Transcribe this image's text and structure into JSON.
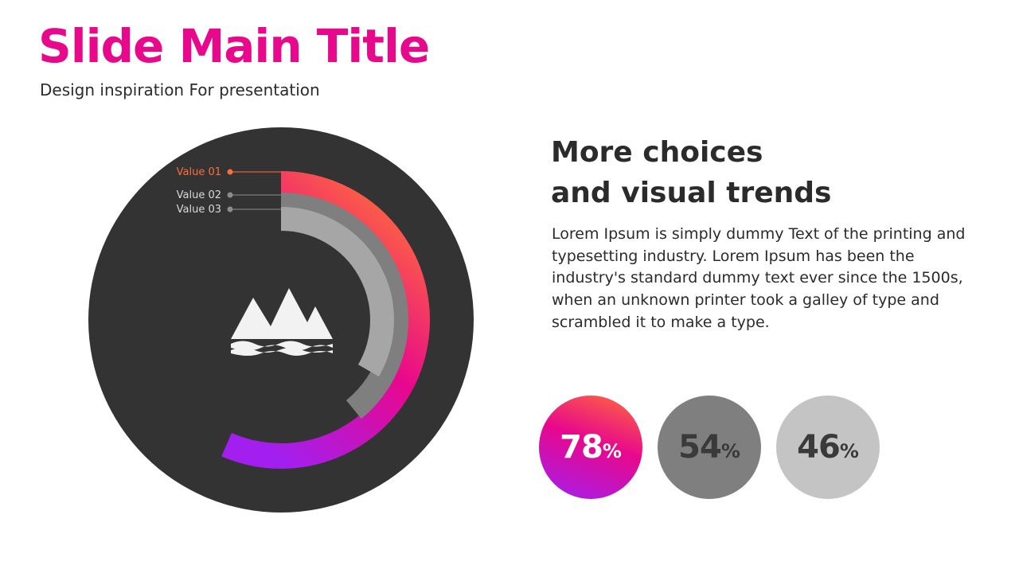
{
  "slide": {
    "title": "Slide Main Title",
    "subtitle": "Design inspiration For presentation"
  },
  "text_block": {
    "heading_line1": "More choices",
    "heading_line2": "and visual trends",
    "body": "Lorem Ipsum is simply dummy Text of the printing and typesetting industry. Lorem Ipsum has been the industry's standard dummy text ever since the 1500s, when an unknown printer took a galley of type and scrambled it to make a type."
  },
  "colors": {
    "accent": "#e8088c",
    "gradient_start": "#ff6d3a",
    "gradient_mid": "#e8088c",
    "gradient_end": "#a21ff0",
    "value02": "#7f7f7f",
    "value03": "#a6a6a6",
    "disc": "#333333",
    "label_light": "#d9d9d9",
    "icon": "#f2f2f2"
  },
  "center_icon": "mountains-water-icon",
  "chart_data": {
    "type": "radial-bar",
    "categories": [
      "Value 01",
      "Value 02",
      "Value 03"
    ],
    "values": [
      78,
      54,
      46
    ],
    "unit": "%",
    "range": [
      0,
      100
    ],
    "badges": [
      {
        "number": "78",
        "unit": "%"
      },
      {
        "number": "54",
        "unit": "%"
      },
      {
        "number": "46",
        "unit": "%"
      }
    ]
  }
}
